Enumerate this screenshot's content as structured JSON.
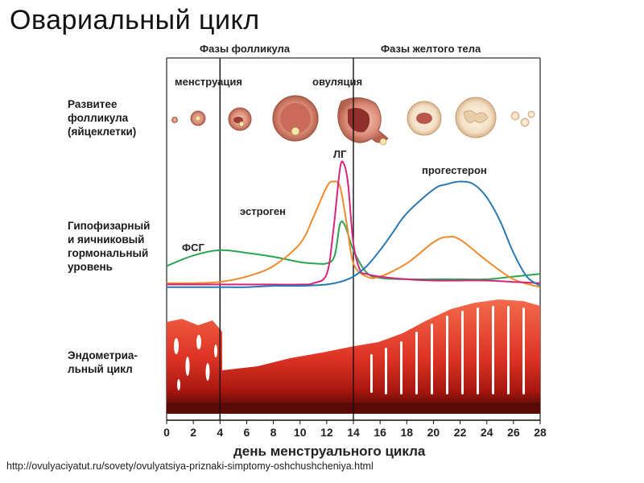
{
  "page": {
    "title": "Овариальный цикл",
    "source_url": "http://ovulyaciyatut.ru/sovety/ovulyatsiya-priznaki-simptomy-oshchushcheniya.html"
  },
  "rows": {
    "follicle": "Развитее\nфолликула\n(яйцеклетки)",
    "hormone": "Гипофизарный\nи яичниковый\nгормональный\nуровень",
    "endometrium": "Эндометриа-\nльный цикл"
  },
  "phases": {
    "follicular": "Фазы фолликула",
    "luteal": "Фазы желтого тела",
    "menstruation": "менструация",
    "ovulation": "овуляция"
  },
  "chart_data": {
    "type": "line",
    "title": "Овариальный цикл",
    "xlabel": "день менструального цикла",
    "ylabel": "",
    "x_ticks": [
      0,
      2,
      4,
      6,
      8,
      10,
      12,
      14,
      16,
      18,
      20,
      22,
      24,
      26,
      28
    ],
    "xlim": [
      0,
      28
    ],
    "ylim": [
      0,
      100
    ],
    "markers": [
      {
        "name": "менструация",
        "x": 4
      },
      {
        "name": "овуляция",
        "x": 14
      }
    ],
    "series": [
      {
        "name": "ФСГ",
        "color": "#2aa553",
        "x": [
          0,
          2,
          4,
          6,
          8,
          10,
          11,
          12,
          12.6,
          13,
          13.4,
          14,
          15,
          16,
          18,
          20,
          22,
          24,
          26,
          28
        ],
        "y": [
          18,
          26,
          30,
          28,
          25,
          21,
          20,
          20,
          26,
          50,
          48,
          30,
          13,
          9,
          8,
          8,
          8,
          8,
          10,
          12
        ]
      },
      {
        "name": "эстроген",
        "color": "#f08a2c",
        "x": [
          0,
          2,
          4,
          6,
          8,
          10,
          11,
          12,
          12.5,
          13,
          13.5,
          14,
          15,
          16,
          18,
          20,
          21,
          22,
          24,
          26,
          28
        ],
        "y": [
          5,
          5,
          6,
          10,
          18,
          35,
          55,
          78,
          82,
          78,
          50,
          20,
          10,
          10,
          20,
          36,
          40,
          38,
          22,
          8,
          2
        ]
      },
      {
        "name": "ЛГ",
        "color": "#d6247c",
        "x": [
          0,
          2,
          4,
          6,
          8,
          10,
          11,
          12,
          12.5,
          13,
          13.3,
          13.6,
          14,
          14.5,
          15,
          16,
          18,
          20,
          22,
          24,
          26,
          28
        ],
        "y": [
          4,
          4,
          4,
          4,
          4,
          4,
          5,
          12,
          45,
          92,
          95,
          80,
          35,
          15,
          12,
          10,
          8,
          7,
          7,
          7,
          6,
          5
        ]
      },
      {
        "name": "прогестерон",
        "color": "#2a78b0",
        "x": [
          0,
          2,
          4,
          6,
          8,
          10,
          12,
          13,
          14,
          15,
          16,
          17,
          18,
          20,
          21,
          22,
          23,
          24,
          25,
          26,
          27,
          28
        ],
        "y": [
          2,
          2,
          2,
          2,
          3,
          3,
          4,
          6,
          10,
          18,
          30,
          44,
          58,
          76,
          80,
          82,
          80,
          70,
          52,
          28,
          10,
          3
        ]
      }
    ]
  }
}
